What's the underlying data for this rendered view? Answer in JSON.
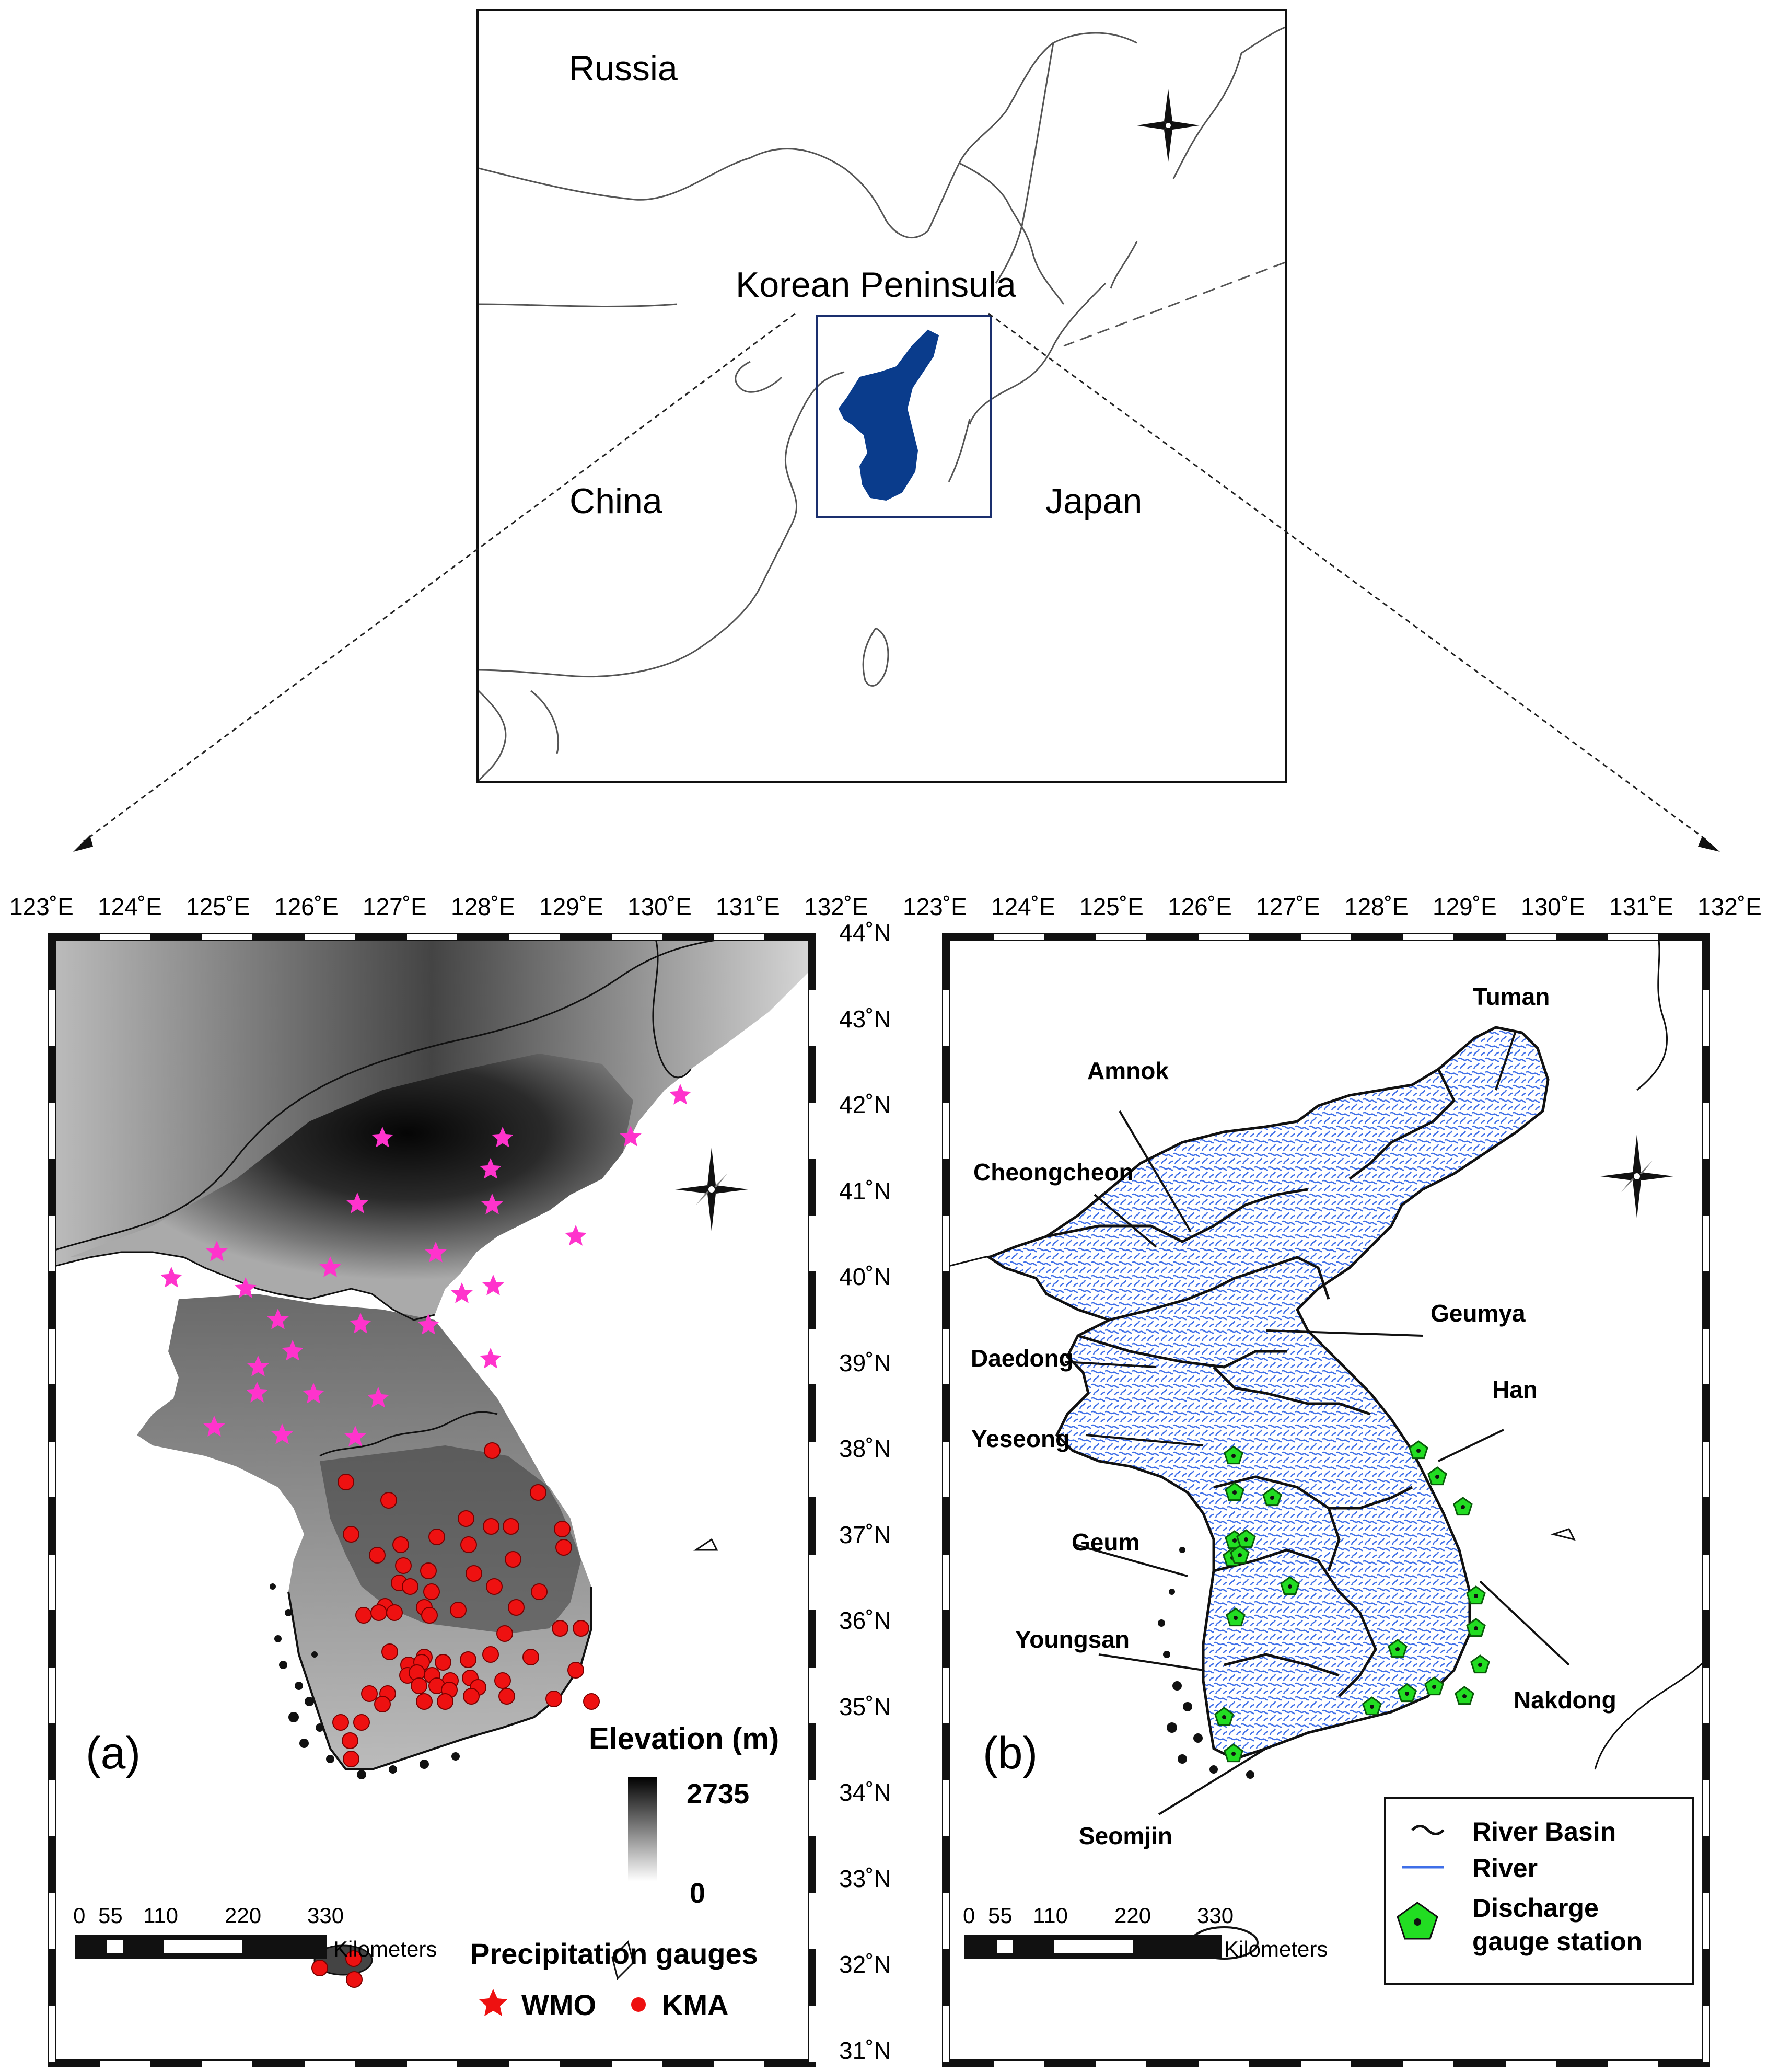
{
  "inset": {
    "countries": [
      "Russia",
      "Korean  Peninsula",
      "China",
      "Japan"
    ]
  },
  "axes": {
    "lon_labels": [
      "123˚E",
      "124˚E",
      "125˚E",
      "126˚E",
      "127˚E",
      "128˚E",
      "129˚E",
      "130˚E",
      "131˚E",
      "132˚E"
    ],
    "lat_labels": [
      "44˚N",
      "43˚N",
      "42˚N",
      "41˚N",
      "40˚N",
      "39˚N",
      "38˚N",
      "37˚N",
      "36˚N",
      "35˚N",
      "34˚N",
      "33˚N",
      "32˚N",
      "31˚N"
    ]
  },
  "panel_a": {
    "tag": "(a)",
    "elevation_title": "Elevation (m)",
    "elevation_max": "2735",
    "elevation_min": "0",
    "gauges_title": "Precipitation gauges",
    "wmo_label": "WMO",
    "kma_label": "KMA",
    "scale_ticks": [
      "0",
      "55",
      "110",
      "220",
      "330"
    ],
    "scale_unit": "Kilometers",
    "colors": {
      "wmo": "#ff33cc",
      "kma": "#ee1111"
    }
  },
  "panel_b": {
    "tag": "(b)",
    "basins": [
      "Tuman",
      "Amnok",
      "Cheongcheon",
      "Geumya",
      "Daedong",
      "Han",
      "Yeseong",
      "Geum",
      "Nakdong",
      "Youngsan",
      "Seomjin"
    ],
    "legend": {
      "basin": "River Basin",
      "river": "River",
      "station_line1": "Discharge",
      "station_line2": "gauge station"
    },
    "scale_ticks": [
      "0",
      "55",
      "110",
      "220",
      "330"
    ],
    "scale_unit": "Kilometers",
    "colors": {
      "river": "#3f6fe8",
      "station": "#22dd22"
    }
  }
}
